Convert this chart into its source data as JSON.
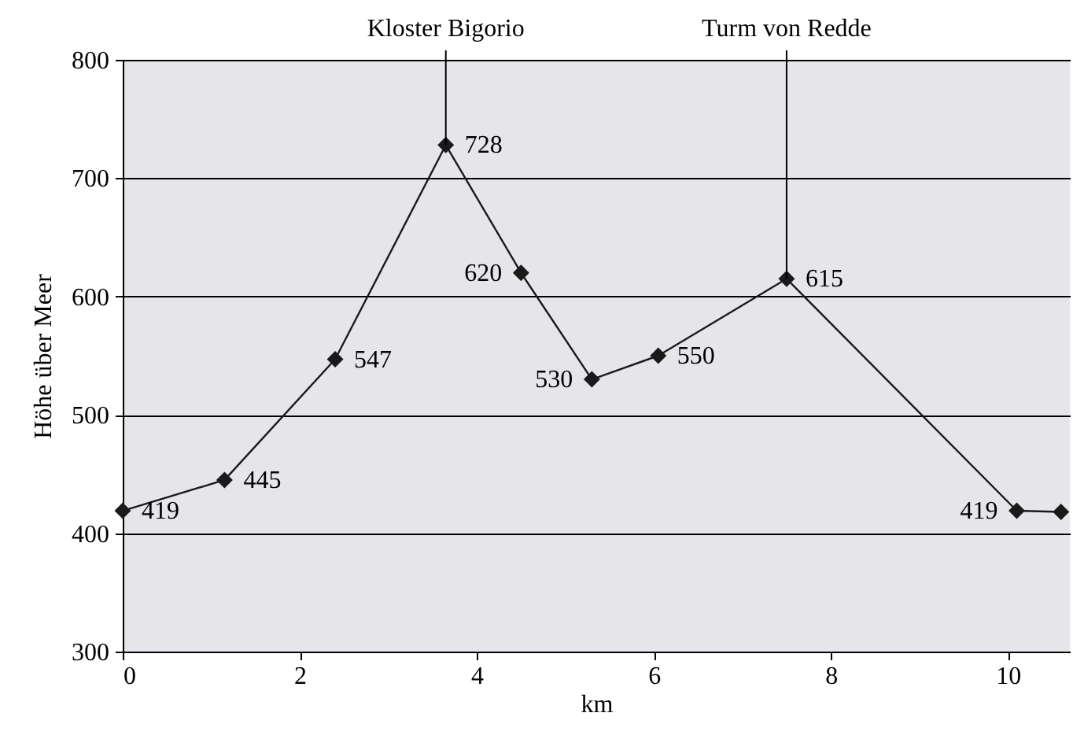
{
  "chart_data": {
    "type": "line",
    "xlabel": "km",
    "ylabel": "Höhe über Meer",
    "x": [
      0,
      1.15,
      2.4,
      3.65,
      4.5,
      5.3,
      6.05,
      7.5,
      10.1,
      10.6
    ],
    "series": [
      {
        "color": "#1a1a1a",
        "values": [
          419,
          445,
          547,
          728,
          620,
          530,
          550,
          615,
          419,
          418
        ],
        "value_labels": [
          "419",
          "445",
          "547",
          "728",
          "620",
          "530",
          "550",
          "615",
          "419",
          null
        ]
      }
    ],
    "annotations": [
      {
        "text": "Kloster Bigorio",
        "x": 3.65,
        "y": 728
      },
      {
        "text": "Turm von Redde",
        "x": 7.5,
        "y": 615
      }
    ],
    "xlim": [
      0,
      10.7
    ],
    "xticks": [
      0,
      2,
      4,
      6,
      8,
      10
    ],
    "ylim": [
      300,
      800
    ],
    "yticks": [
      300,
      400,
      500,
      600,
      700,
      800
    ],
    "grid": "y",
    "marker": "diamond",
    "line_style": "solid"
  }
}
